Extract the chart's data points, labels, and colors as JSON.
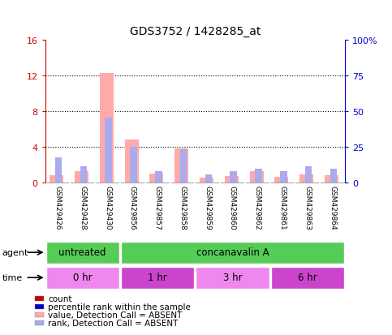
{
  "title": "GDS3752 / 1428285_at",
  "samples": [
    "GSM429426",
    "GSM429428",
    "GSM429430",
    "GSM429856",
    "GSM429857",
    "GSM429858",
    "GSM429859",
    "GSM429860",
    "GSM429862",
    "GSM429861",
    "GSM429863",
    "GSM429864"
  ],
  "value_absent": [
    0.8,
    1.2,
    12.2,
    4.8,
    1.0,
    3.8,
    0.5,
    0.7,
    1.2,
    0.6,
    0.9,
    0.8
  ],
  "rank_absent": [
    2.8,
    1.8,
    7.2,
    4.0,
    1.2,
    3.7,
    0.9,
    1.2,
    1.5,
    1.2,
    1.8,
    1.5
  ],
  "ylim_left": [
    0,
    16
  ],
  "ylim_right": [
    0,
    100
  ],
  "yticks_left": [
    0,
    4,
    8,
    12,
    16
  ],
  "yticks_right": [
    0,
    25,
    50,
    75,
    100
  ],
  "ytick_labels_right": [
    "0",
    "25",
    "50",
    "75",
    "100%"
  ],
  "ytick_labels_left": [
    "0",
    "4",
    "8",
    "12",
    "16"
  ],
  "agent_labels": [
    {
      "label": "untreated",
      "start": 0,
      "end": 3,
      "color": "#55cc55"
    },
    {
      "label": "concanavalin A",
      "start": 3,
      "end": 12,
      "color": "#55cc55"
    }
  ],
  "time_labels": [
    {
      "label": "0 hr",
      "start": 0,
      "end": 3,
      "color": "#ee88ee"
    },
    {
      "label": "1 hr",
      "start": 3,
      "end": 6,
      "color": "#cc44cc"
    },
    {
      "label": "3 hr",
      "start": 6,
      "end": 9,
      "color": "#ee88ee"
    },
    {
      "label": "6 hr",
      "start": 9,
      "end": 12,
      "color": "#cc44cc"
    }
  ],
  "bar_color_absent_value": "#ffaaaa",
  "bar_color_absent_rank": "#aaaaee",
  "background_color": "#ffffff",
  "left_axis_color": "#cc0000",
  "right_axis_color": "#0000cc",
  "sample_box_color": "#cccccc",
  "legend_items": [
    {
      "color": "#cc0000",
      "label": "count"
    },
    {
      "color": "#0000cc",
      "label": "percentile rank within the sample"
    },
    {
      "color": "#ffaaaa",
      "label": "value, Detection Call = ABSENT"
    },
    {
      "color": "#aaaaee",
      "label": "rank, Detection Call = ABSENT"
    }
  ]
}
